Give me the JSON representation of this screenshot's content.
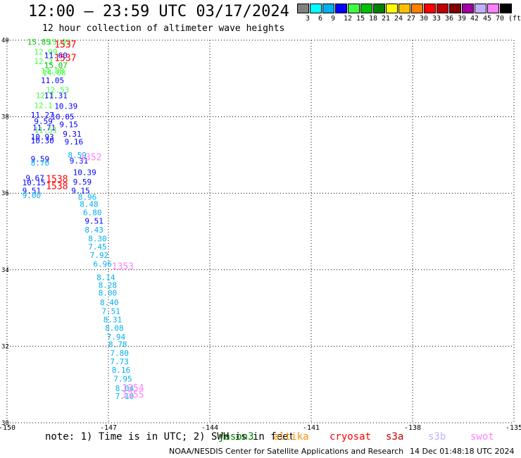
{
  "header": {
    "title": "12:00 — 23:59 UTC 03/17/2024",
    "subtitle": "12 hour collection of altimeter wave heights"
  },
  "legend": {
    "colors": [
      "#808080",
      "#00ffff",
      "#00b0f0",
      "#0000ff",
      "#40ff40",
      "#00c000",
      "#008000",
      "#ffff00",
      "#ffc000",
      "#ff8000",
      "#ff0000",
      "#c00000",
      "#800000",
      "#a000a0",
      "#c0b0ff",
      "#ff80ff",
      "#000000"
    ],
    "labels": [
      "3",
      "6",
      "9",
      "12",
      "15",
      "18",
      "21",
      "24",
      "27",
      "30",
      "33",
      "36",
      "39",
      "42",
      "45",
      "70",
      "(ft)"
    ]
  },
  "note": "note: 1) Time is in UTC; 2) SWH is in feet",
  "satellites": [
    {
      "name": "jason3",
      "color": "#008000"
    },
    {
      "name": "altika",
      "color": "#ff8c00"
    },
    {
      "name": "cryosat",
      "color": "#ff0000"
    },
    {
      "name": "s3a",
      "color": "#c00000"
    },
    {
      "name": "s3b",
      "color": "#c0b0ff"
    },
    {
      "name": "swot",
      "color": "#ff80ff"
    }
  ],
  "footer": {
    "credit": "NOAA/NESDIS Center for Satellite Applications and Research",
    "timestamp": "14 Dec 01:48:18 UTC 2024"
  },
  "chart_data": {
    "type": "scatter",
    "title": "12:00 — 23:59 UTC 03/17/2024",
    "xlim": [
      -150,
      -135
    ],
    "ylim": [
      30,
      40
    ],
    "xticks": [
      "-150",
      "-147",
      "-144",
      "-141",
      "-138",
      "-135"
    ],
    "yticks": [
      "30",
      "32",
      "34",
      "36",
      "38",
      "40"
    ],
    "grid": true,
    "points": [
      {
        "x": -149.4,
        "y": 39.95,
        "label": "15.85",
        "color": "#00c000"
      },
      {
        "x": -148.8,
        "y": 39.95,
        "label": "15.93",
        "color": "#40ff40"
      },
      {
        "x": -149.2,
        "y": 39.7,
        "label": "12.99",
        "color": "#40ff40"
      },
      {
        "x": -148.9,
        "y": 39.6,
        "label": "11.60",
        "color": "#0000ff"
      },
      {
        "x": -149.2,
        "y": 39.45,
        "label": "12.3",
        "color": "#40ff40"
      },
      {
        "x": -148.9,
        "y": 39.35,
        "label": "15.07",
        "color": "#00c000"
      },
      {
        "x": -149.0,
        "y": 39.2,
        "label": "14.88",
        "color": "#40ff40"
      },
      {
        "x": -148.95,
        "y": 39.15,
        "label": "14.08",
        "color": "#40ff40"
      },
      {
        "x": -149.0,
        "y": 38.95,
        "label": "11.05",
        "color": "#0000ff"
      },
      {
        "x": -148.85,
        "y": 38.7,
        "label": "12.53",
        "color": "#40ff40"
      },
      {
        "x": -149.15,
        "y": 38.55,
        "label": "12.1",
        "color": "#40ff40"
      },
      {
        "x": -148.9,
        "y": 38.55,
        "label": "11.31",
        "color": "#0000ff"
      },
      {
        "x": -149.2,
        "y": 38.3,
        "label": "12.1",
        "color": "#40ff40"
      },
      {
        "x": -148.6,
        "y": 38.28,
        "label": "10.39",
        "color": "#0000ff"
      },
      {
        "x": -149.3,
        "y": 38.05,
        "label": "11.27",
        "color": "#0000ff"
      },
      {
        "x": -148.7,
        "y": 38.0,
        "label": "10.05",
        "color": "#0000ff"
      },
      {
        "x": -149.2,
        "y": 37.88,
        "label": "9.59",
        "color": "#0000ff"
      },
      {
        "x": -148.45,
        "y": 37.8,
        "label": "9.15",
        "color": "#0000ff"
      },
      {
        "x": -149.25,
        "y": 37.72,
        "label": "11.71",
        "color": "#0000ff"
      },
      {
        "x": -149.2,
        "y": 37.65,
        "label": "11.51",
        "color": "#40ff40"
      },
      {
        "x": -148.35,
        "y": 37.55,
        "label": "9.31",
        "color": "#0000ff"
      },
      {
        "x": -149.3,
        "y": 37.48,
        "label": "10.93",
        "color": "#0000ff"
      },
      {
        "x": -149.3,
        "y": 37.38,
        "label": "10.30",
        "color": "#0000ff"
      },
      {
        "x": -148.3,
        "y": 37.35,
        "label": "9.16",
        "color": "#0000ff"
      },
      {
        "x": -148.2,
        "y": 37.0,
        "label": "8.59",
        "color": "#00b0f0"
      },
      {
        "x": -148.15,
        "y": 36.85,
        "label": "9.31",
        "color": "#0000ff"
      },
      {
        "x": -149.3,
        "y": 36.9,
        "label": "9.59",
        "color": "#0000ff"
      },
      {
        "x": -149.3,
        "y": 36.8,
        "label": "8.70",
        "color": "#00b0f0"
      },
      {
        "x": -148.05,
        "y": 36.55,
        "label": "10.39",
        "color": "#0000ff"
      },
      {
        "x": -149.45,
        "y": 36.4,
        "label": "9.67",
        "color": "#0000ff"
      },
      {
        "x": -148.05,
        "y": 36.3,
        "label": "9.59",
        "color": "#0000ff"
      },
      {
        "x": -149.55,
        "y": 36.28,
        "label": "10.15",
        "color": "#0000ff"
      },
      {
        "x": -149.55,
        "y": 36.07,
        "label": "9.51",
        "color": "#0000ff"
      },
      {
        "x": -148.1,
        "y": 36.07,
        "label": "9.15",
        "color": "#0000ff"
      },
      {
        "x": -149.55,
        "y": 35.95,
        "label": "9.00",
        "color": "#00b0f0"
      },
      {
        "x": -147.9,
        "y": 35.9,
        "label": "8.96",
        "color": "#00b0f0"
      },
      {
        "x": -147.85,
        "y": 35.72,
        "label": "8.48",
        "color": "#00b0f0"
      },
      {
        "x": -147.75,
        "y": 35.5,
        "label": "6.80",
        "color": "#00b0f0"
      },
      {
        "x": -147.7,
        "y": 35.28,
        "label": "9.51",
        "color": "#0000ff"
      },
      {
        "x": -147.7,
        "y": 35.05,
        "label": "8.43",
        "color": "#00b0f0"
      },
      {
        "x": -147.6,
        "y": 34.82,
        "label": "8.30",
        "color": "#00b0f0"
      },
      {
        "x": -147.6,
        "y": 34.6,
        "label": "7.45",
        "color": "#00b0f0"
      },
      {
        "x": -147.55,
        "y": 34.38,
        "label": "7.92",
        "color": "#00b0f0"
      },
      {
        "x": -147.45,
        "y": 34.15,
        "label": "6.96",
        "color": "#00b0f0"
      },
      {
        "x": -147.35,
        "y": 33.8,
        "label": "8.14",
        "color": "#00b0f0"
      },
      {
        "x": -147.3,
        "y": 33.6,
        "label": "8.28",
        "color": "#00b0f0"
      },
      {
        "x": -147.3,
        "y": 33.4,
        "label": "8.00",
        "color": "#00b0f0"
      },
      {
        "x": -147.25,
        "y": 33.15,
        "label": "8.40",
        "color": "#00b0f0"
      },
      {
        "x": -147.2,
        "y": 32.92,
        "label": "7.51",
        "color": "#00b0f0"
      },
      {
        "x": -147.15,
        "y": 32.7,
        "label": "8.31",
        "color": "#00b0f0"
      },
      {
        "x": -147.1,
        "y": 32.48,
        "label": "8.08",
        "color": "#00b0f0"
      },
      {
        "x": -147.05,
        "y": 32.25,
        "label": "7.94",
        "color": "#00b0f0"
      },
      {
        "x": -147.0,
        "y": 32.05,
        "label": "8.78",
        "color": "#00b0f0"
      },
      {
        "x": -146.95,
        "y": 31.82,
        "label": "7.80",
        "color": "#00b0f0"
      },
      {
        "x": -146.95,
        "y": 31.6,
        "label": "7.73",
        "color": "#00b0f0"
      },
      {
        "x": -146.9,
        "y": 31.38,
        "label": "8.16",
        "color": "#00b0f0"
      },
      {
        "x": -146.85,
        "y": 31.15,
        "label": "7.95",
        "color": "#00b0f0"
      },
      {
        "x": -146.8,
        "y": 30.9,
        "label": "8.04",
        "color": "#00b0f0"
      },
      {
        "x": -146.8,
        "y": 30.7,
        "label": "7.10",
        "color": "#00b0f0"
      }
    ],
    "pass_labels": [
      {
        "x": -148.6,
        "y": 39.9,
        "label": "1537",
        "color": "#ff0000"
      },
      {
        "x": -148.6,
        "y": 39.55,
        "label": "1537",
        "color": "#ff0000"
      },
      {
        "x": -147.85,
        "y": 36.95,
        "label": "1352",
        "color": "#ff80ff"
      },
      {
        "x": -148.85,
        "y": 36.38,
        "label": "1538",
        "color": "#ff0000"
      },
      {
        "x": -148.85,
        "y": 36.2,
        "label": "1538",
        "color": "#ff0000"
      },
      {
        "x": -146.9,
        "y": 34.1,
        "label": "1353",
        "color": "#ff80ff"
      },
      {
        "x": -146.6,
        "y": 30.92,
        "label": "1354",
        "color": "#ff80ff"
      },
      {
        "x": -146.6,
        "y": 30.75,
        "label": "1355",
        "color": "#ff80ff"
      }
    ]
  }
}
